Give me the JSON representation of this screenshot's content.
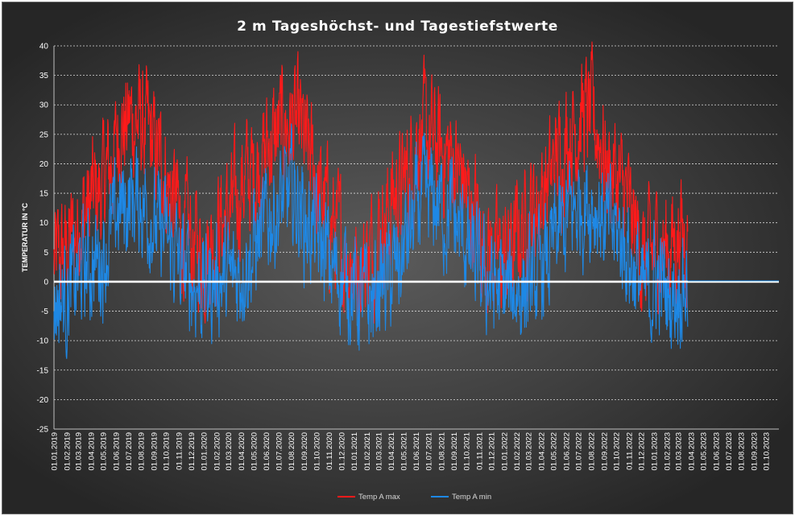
{
  "chart_data": {
    "type": "line",
    "title": "2 m Tageshöchst-  und Tagestiefstwerte",
    "xlabel": "",
    "ylabel": "TEMPERATUR IN °C",
    "ylim": [
      -25,
      40
    ],
    "yticks": [
      40,
      35,
      30,
      25,
      20,
      15,
      10,
      5,
      0,
      -5,
      -10,
      -15,
      -20,
      -25
    ],
    "x_tick_labels": [
      "01.01.2019",
      "01.02.2019",
      "01.03.2019",
      "01.04.2019",
      "01.05.2019",
      "01.06.2019",
      "01.07.2019",
      "01.08.2019",
      "01.09.2019",
      "01.10.2019",
      "01.11.2019",
      "01.12.2019",
      "01.01.2020",
      "01.02.2020",
      "01.03.2020",
      "01.04.2020",
      "01.05.2020",
      "01.06.2020",
      "01.07.2020",
      "01.08.2020",
      "01.09.2020",
      "01.10.2020",
      "01.11.2020",
      "01.12.2020",
      "01.01.2021",
      "01.02.2021",
      "01.03.2021",
      "01.04.2021",
      "01.05.2021",
      "01.06.2021",
      "01.07.2021",
      "01.08.2021",
      "01.09.2021",
      "01.10.2021",
      "01.11.2021",
      "01.12.2021",
      "01.01.2022",
      "01.02.2022",
      "01.03.2022",
      "01.04.2022",
      "01.05.2022",
      "01.06.2022",
      "01.07.2022",
      "01.08.2022",
      "01.09.2022",
      "01.10.2022",
      "01.11.2022",
      "01.12.2022",
      "01.01.2023",
      "01.02.2023",
      "01.03.2023",
      "01.04.2023",
      "01.05.2023",
      "01.06.2023",
      "01.07.2023",
      "01.08.2023",
      "01.09.2023",
      "01.10.2023"
    ],
    "x_start": "2019-01-01",
    "x_end": "2023-11-01",
    "data_end": "2023-03-24",
    "series": [
      {
        "name": "Temp A max",
        "color": "#ff1a1a",
        "approximate_monthly": [
          [
            "2019-01",
            3
          ],
          [
            "2019-02",
            6
          ],
          [
            "2019-03",
            11
          ],
          [
            "2019-04",
            14
          ],
          [
            "2019-05",
            17
          ],
          [
            "2019-06",
            25
          ],
          [
            "2019-07",
            28
          ],
          [
            "2019-08",
            26
          ],
          [
            "2019-09",
            22
          ],
          [
            "2019-10",
            17
          ],
          [
            "2019-11",
            9
          ],
          [
            "2019-12",
            6
          ],
          [
            "2020-01",
            5
          ],
          [
            "2020-02",
            10
          ],
          [
            "2020-03",
            11
          ],
          [
            "2020-04",
            17
          ],
          [
            "2020-05",
            19
          ],
          [
            "2020-06",
            23
          ],
          [
            "2020-07",
            26
          ],
          [
            "2020-08",
            27
          ],
          [
            "2020-09",
            23
          ],
          [
            "2020-10",
            15
          ],
          [
            "2020-11",
            10
          ],
          [
            "2020-12",
            5
          ],
          [
            "2021-01",
            2
          ],
          [
            "2021-02",
            4
          ],
          [
            "2021-03",
            9
          ],
          [
            "2021-04",
            14
          ],
          [
            "2021-05",
            17
          ],
          [
            "2021-06",
            25
          ],
          [
            "2021-07",
            24
          ],
          [
            "2021-08",
            22
          ],
          [
            "2021-09",
            20
          ],
          [
            "2021-10",
            14
          ],
          [
            "2021-11",
            8
          ],
          [
            "2021-12",
            4
          ],
          [
            "2022-01",
            4
          ],
          [
            "2022-02",
            8
          ],
          [
            "2022-03",
            12
          ],
          [
            "2022-04",
            15
          ],
          [
            "2022-05",
            20
          ],
          [
            "2022-06",
            25
          ],
          [
            "2022-07",
            28
          ],
          [
            "2022-08",
            28
          ],
          [
            "2022-09",
            20
          ],
          [
            "2022-10",
            17
          ],
          [
            "2022-11",
            11
          ],
          [
            "2022-12",
            3
          ],
          [
            "2023-01",
            6
          ],
          [
            "2023-02",
            6
          ],
          [
            "2023-03",
            8
          ]
        ]
      },
      {
        "name": "Temp A min",
        "color": "#1e88e5",
        "approximate_monthly": [
          [
            "2019-01",
            -3
          ],
          [
            "2019-02",
            -2
          ],
          [
            "2019-03",
            2
          ],
          [
            "2019-04",
            3
          ],
          [
            "2019-05",
            5
          ],
          [
            "2019-06",
            12
          ],
          [
            "2019-07",
            14
          ],
          [
            "2019-08",
            14
          ],
          [
            "2019-09",
            9
          ],
          [
            "2019-10",
            7
          ],
          [
            "2019-11",
            2
          ],
          [
            "2019-12",
            0
          ],
          [
            "2020-01",
            -1
          ],
          [
            "2020-02",
            1
          ],
          [
            "2020-03",
            0
          ],
          [
            "2020-04",
            3
          ],
          [
            "2020-05",
            6
          ],
          [
            "2020-06",
            11
          ],
          [
            "2020-07",
            13
          ],
          [
            "2020-08",
            15
          ],
          [
            "2020-09",
            10
          ],
          [
            "2020-10",
            7
          ],
          [
            "2020-11",
            2
          ],
          [
            "2020-12",
            1
          ],
          [
            "2021-01",
            -2
          ],
          [
            "2021-02",
            -4
          ],
          [
            "2021-03",
            0
          ],
          [
            "2021-04",
            1
          ],
          [
            "2021-05",
            6
          ],
          [
            "2021-06",
            13
          ],
          [
            "2021-07",
            14
          ],
          [
            "2021-08",
            12
          ],
          [
            "2021-09",
            10
          ],
          [
            "2021-10",
            5
          ],
          [
            "2021-11",
            1
          ],
          [
            "2021-12",
            -1
          ],
          [
            "2022-01",
            -2
          ],
          [
            "2022-02",
            -1
          ],
          [
            "2022-03",
            -1
          ],
          [
            "2022-04",
            2
          ],
          [
            "2022-05",
            7
          ],
          [
            "2022-06",
            11
          ],
          [
            "2022-07",
            13
          ],
          [
            "2022-08",
            14
          ],
          [
            "2022-09",
            9
          ],
          [
            "2022-10",
            8
          ],
          [
            "2022-11",
            4
          ],
          [
            "2022-12",
            -3
          ],
          [
            "2023-01",
            1
          ],
          [
            "2023-02",
            -3
          ],
          [
            "2023-03",
            0
          ]
        ]
      }
    ],
    "zero_line_color": "#ffffff",
    "grid": true,
    "legend": "bottom-center"
  }
}
